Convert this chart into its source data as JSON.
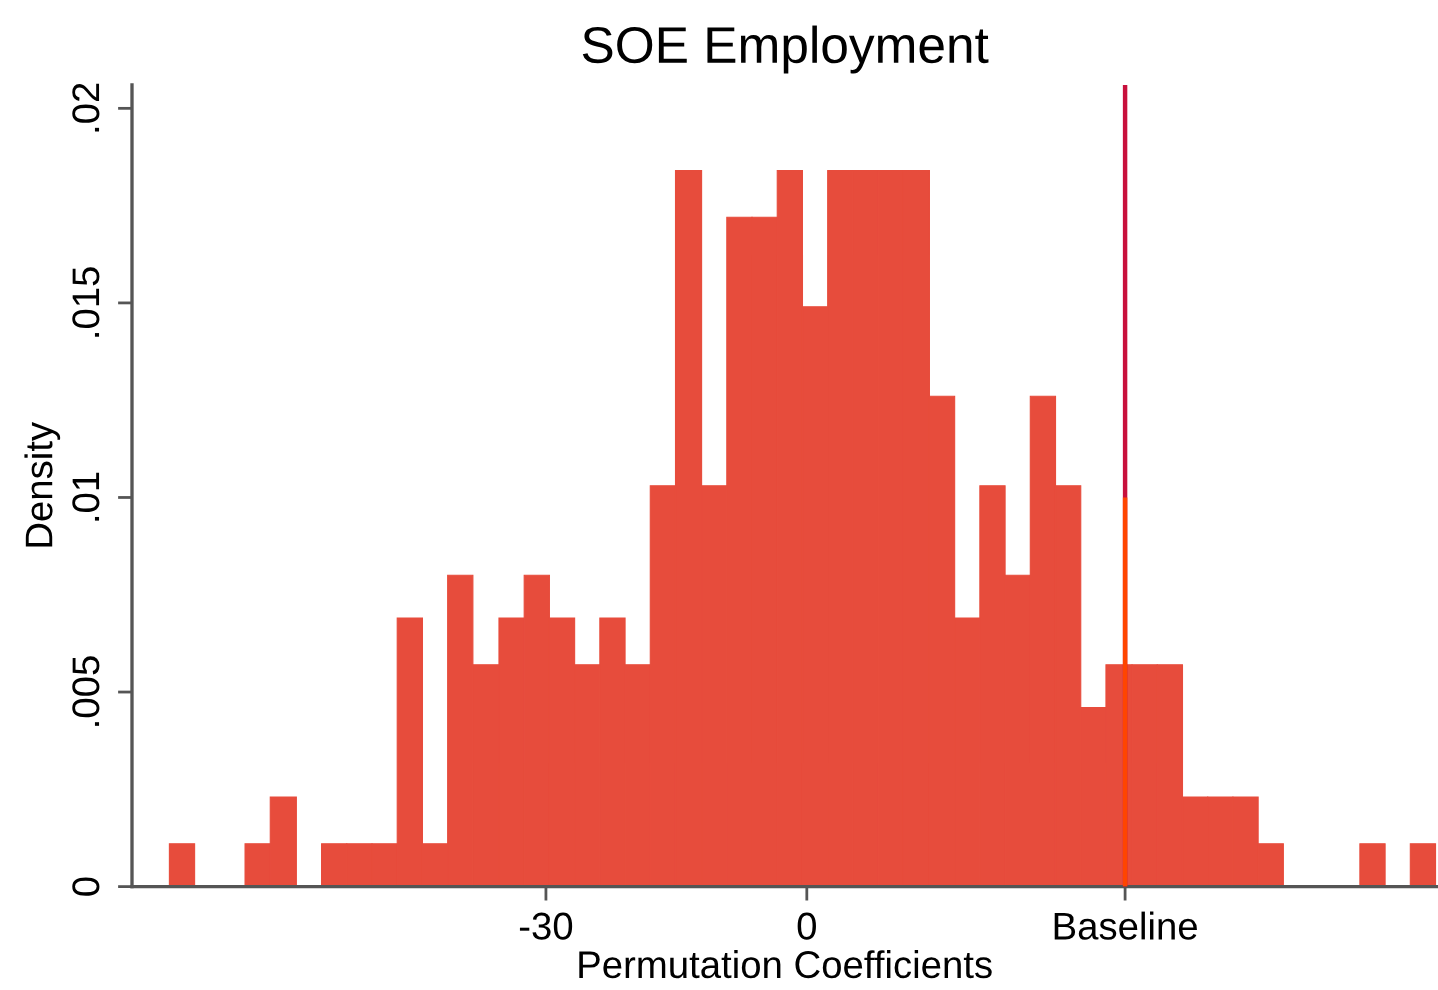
{
  "chart_data": {
    "type": "histogram",
    "title": "SOE Employment",
    "xlabel": "Permutation Coefficients",
    "ylabel": "Density",
    "bins": [
      -73.3,
      -70.4,
      -64.6,
      -61.7,
      -58.7,
      -55.8,
      -52.9,
      -50.0,
      -47.1,
      -44.2,
      -41.3,
      -38.4,
      -35.4,
      -32.5,
      -29.6,
      -26.7,
      -23.8,
      -20.9,
      -18.0,
      -15.1,
      -12.1,
      -9.2,
      -6.3,
      -3.4,
      -0.5,
      2.4,
      5.3,
      8.2,
      11.1,
      14.1,
      17.0,
      19.9,
      22.8,
      25.7,
      28.6,
      31.5,
      34.4,
      37.4,
      40.3,
      43.2,
      46.1,
      49.0,
      51.9,
      54.8,
      63.6,
      66.5,
      69.4,
      72.3
    ],
    "values": [
      0.0011,
      0,
      0.0011,
      0.0023,
      0,
      0.0011,
      0.0011,
      0.0011,
      0.0069,
      0.0011,
      0.008,
      0.0057,
      0.0069,
      0.008,
      0.0069,
      0.0057,
      0.0069,
      0.0057,
      0.0103,
      0.0184,
      0.0103,
      0.0172,
      0.0172,
      0.0184,
      0.0149,
      0.0184,
      0.0184,
      0.0184,
      0.0184,
      0.0126,
      0.0069,
      0.0103,
      0.008,
      0.0126,
      0.0103,
      0.0046,
      0.0057,
      0.0057,
      0.0057,
      0.0023,
      0.0023,
      0.0023,
      0.0011,
      0,
      0.0011,
      0,
      0.0011
    ],
    "color": "#e74c3c",
    "xlim": [
      -77.6,
      72.5
    ],
    "xticks": [
      -30,
      0,
      {
        "value": 36.6,
        "label": "Baseline"
      }
    ],
    "ylim": [
      0,
      0.0206
    ],
    "yticks": [
      0,
      {
        "value": 0.005,
        "label": ".005"
      },
      {
        "value": 0.01,
        "label": ".01"
      },
      {
        "value": 0.015,
        "label": ".015"
      },
      {
        "value": 0.02,
        "label": ".02"
      }
    ],
    "ref_lines": [
      {
        "axis": "x",
        "value": 36.6,
        "color": "#c8103c"
      }
    ],
    "series": [
      {
        "type": "line",
        "x": [
          36.6,
          36.6
        ],
        "values": [
          0,
          0.01
        ],
        "color": "#ff4500"
      }
    ]
  }
}
